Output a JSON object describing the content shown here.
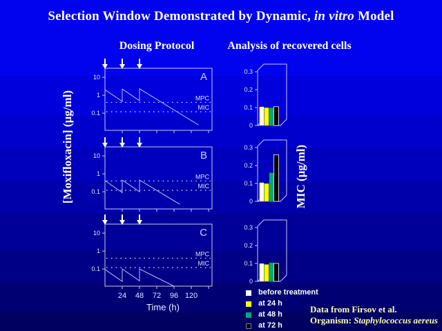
{
  "title": {
    "prefix": "Selection Window Demonstrated by Dynamic, ",
    "italic": "in vitro",
    "suffix": " Model"
  },
  "subheads": {
    "left": "Dosing Protocol",
    "right": "Analysis of recovered cells"
  },
  "axis_labels": {
    "dosing_y": "[Moxifloxacin] (µg/ml)",
    "bars_y": "MIC (µg/ml)",
    "time_x": "Time (h)"
  },
  "colors": {
    "background_top": "#0203EE",
    "background_bottom": "#000060",
    "chart_line": "#BCC2F0",
    "frame": "#C9CDF0",
    "tick_text": "#E2E4FA",
    "note_text": "#FFFFB0",
    "title_text": "#FFFFFF",
    "bar_white": "#FFFFFF",
    "bar_yellow": "#FFFF00",
    "bar_teal": "#00A878",
    "bar_black": "#000000"
  },
  "legend": {
    "items": [
      {
        "label": "before treatment",
        "color": "#FFFFFF"
      },
      {
        "label": "at 24 h",
        "color": "#FFFF00"
      },
      {
        "label": "at 48 h",
        "color": "#00A878"
      },
      {
        "label": "at 72 h",
        "color": "#000000"
      }
    ]
  },
  "notes": {
    "line1": "Data from Firsov et al.",
    "line2_prefix": "Organism: ",
    "line2_italic": "Staphylococcus aereus"
  },
  "chart_data": [
    {
      "id": "dosing-A",
      "type": "line",
      "panel": "A",
      "yscale": "log",
      "xlabel": "Time (h)",
      "ylabel": "[Moxifloxacin] (µg/ml)",
      "xlim": [
        0,
        149
      ],
      "ylim": [
        0.011,
        24
      ],
      "yticks": [
        10,
        1,
        0.1
      ],
      "xticks": [
        24,
        48,
        72,
        96,
        120
      ],
      "show_xtick_labels": false,
      "dose_arrows_h": [
        0,
        24,
        48
      ],
      "ref_lines": [
        {
          "label": "MPC",
          "value": 0.4
        },
        {
          "label": "MIC",
          "value": 0.12
        }
      ],
      "points": [
        [
          0,
          2.0
        ],
        [
          24,
          0.45
        ],
        [
          24,
          2.2
        ],
        [
          48,
          0.5
        ],
        [
          48,
          2.3
        ],
        [
          130,
          0.022
        ]
      ]
    },
    {
      "id": "dosing-B",
      "type": "line",
      "panel": "B",
      "yscale": "log",
      "xlabel": "Time (h)",
      "ylabel": "[Moxifloxacin] (µg/ml)",
      "xlim": [
        0,
        149
      ],
      "ylim": [
        0.011,
        24
      ],
      "yticks": [
        10,
        1,
        0.1
      ],
      "xticks": [
        24,
        48,
        72,
        96,
        120
      ],
      "show_xtick_labels": false,
      "dose_arrows_h": [
        0,
        24,
        48
      ],
      "ref_lines": [
        {
          "label": "MPC",
          "value": 0.4
        },
        {
          "label": "MIC",
          "value": 0.12
        }
      ],
      "points": [
        [
          0,
          0.42
        ],
        [
          24,
          0.09
        ],
        [
          24,
          0.45
        ],
        [
          48,
          0.1
        ],
        [
          48,
          0.45
        ],
        [
          104,
          0.02
        ]
      ]
    },
    {
      "id": "dosing-C",
      "type": "line",
      "panel": "C",
      "yscale": "log",
      "xlabel": "Time (h)",
      "ylabel": "[Moxifloxacin] (µg/ml)",
      "xlim": [
        0,
        149
      ],
      "ylim": [
        0.011,
        24
      ],
      "yticks": [
        10,
        1,
        0.1
      ],
      "xticks": [
        24,
        48,
        72,
        96,
        120
      ],
      "show_xtick_labels": true,
      "dose_arrows_h": [
        0,
        24,
        48
      ],
      "ref_lines": [
        {
          "label": "MPC",
          "value": 0.4
        },
        {
          "label": "MIC",
          "value": 0.12
        }
      ],
      "points": [
        [
          0,
          0.095
        ],
        [
          24,
          0.02
        ],
        [
          24,
          0.1
        ],
        [
          48,
          0.022
        ],
        [
          48,
          0.1
        ],
        [
          96,
          0.011
        ]
      ]
    },
    {
      "id": "mic-A",
      "type": "bar",
      "panel": "A",
      "ylabel": "MIC (µg/ml)",
      "ylim": [
        0,
        0.3
      ],
      "yticks": [
        0,
        0.1,
        0.2,
        0.3
      ],
      "categories": [
        "before treatment",
        "at 24 h",
        "at 48 h",
        "at 72 h"
      ],
      "values": [
        0.105,
        0.1,
        0.1,
        0.105
      ],
      "colors": [
        "#FFFFFF",
        "#FFFF00",
        "#00A878",
        "#000000"
      ]
    },
    {
      "id": "mic-B",
      "type": "bar",
      "panel": "B",
      "ylabel": "MIC (µg/ml)",
      "ylim": [
        0,
        0.3
      ],
      "yticks": [
        0,
        0.1,
        0.2,
        0.3
      ],
      "categories": [
        "before treatment",
        "at 24 h",
        "at 48 h",
        "at 72 h"
      ],
      "values": [
        0.105,
        0.1,
        0.16,
        0.26
      ],
      "colors": [
        "#FFFFFF",
        "#FFFF00",
        "#00A878",
        "#000000"
      ]
    },
    {
      "id": "mic-C",
      "type": "bar",
      "panel": "C",
      "ylabel": "MIC (µg/ml)",
      "ylim": [
        0,
        0.3
      ],
      "yticks": [
        0,
        0.1,
        0.2,
        0.3
      ],
      "categories": [
        "before treatment",
        "at 24 h",
        "at 48 h",
        "at 72 h"
      ],
      "values": [
        0.1,
        0.095,
        0.105,
        0.1
      ],
      "colors": [
        "#FFFFFF",
        "#FFFF00",
        "#00A878",
        "#000000"
      ]
    }
  ]
}
